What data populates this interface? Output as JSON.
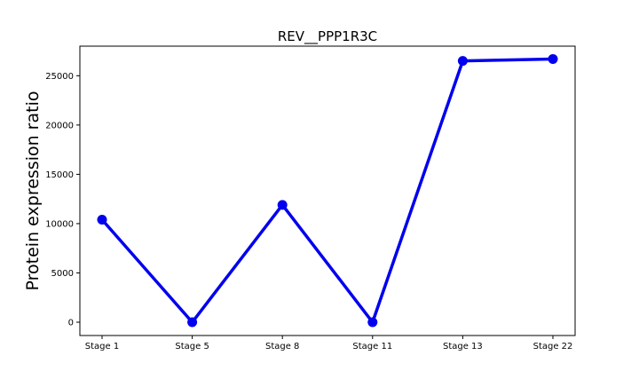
{
  "chart_data": {
    "type": "line",
    "title": "REV__PPP1R3C",
    "xlabel": "",
    "ylabel": "Protein expression ratio",
    "categories": [
      "Stage 1",
      "Stage 5",
      "Stage 8",
      "Stage 11",
      "Stage 13",
      "Stage 22"
    ],
    "series": [
      {
        "name": "REV__PPP1R3C",
        "values": [
          10400,
          0,
          11900,
          0,
          26500,
          26700
        ],
        "color": "#0000ee"
      }
    ],
    "ylim": [
      -1350,
      28000
    ],
    "yticks": [
      0,
      5000,
      10000,
      15000,
      20000,
      25000
    ],
    "grid": false,
    "legend": "none"
  }
}
